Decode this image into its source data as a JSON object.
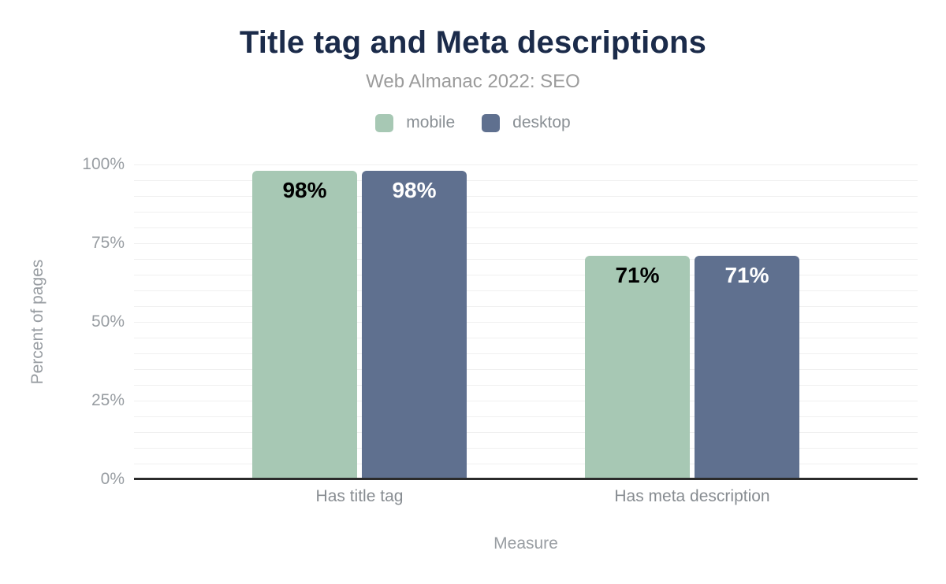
{
  "title": "Title tag and Meta descriptions",
  "subtitle": "Web Almanac 2022: SEO",
  "chart_data": {
    "type": "bar",
    "categories": [
      "Has title tag",
      "Has meta description"
    ],
    "series": [
      {
        "name": "mobile",
        "color": "#a7c8b4",
        "label_color": "#000000",
        "values": [
          98,
          71
        ]
      },
      {
        "name": "desktop",
        "color": "#5f708f",
        "label_color": "#ffffff",
        "values": [
          98,
          71
        ]
      }
    ],
    "value_labels": [
      [
        "98%",
        "71%"
      ],
      [
        "98%",
        "71%"
      ]
    ],
    "title": "Title tag and Meta descriptions",
    "subtitle": "Web Almanac 2022: SEO",
    "xlabel": "Measure",
    "ylabel": "Percent of pages",
    "ylim": [
      0,
      100
    ],
    "y_ticks": [
      {
        "label": "0%",
        "value": 0
      },
      {
        "label": "25%",
        "value": 25
      },
      {
        "label": "50%",
        "value": 50
      },
      {
        "label": "75%",
        "value": 75
      },
      {
        "label": "100%",
        "value": 100
      }
    ],
    "grid": "horizontal, minor lines every 5%",
    "legend_position": "top"
  },
  "palette": {
    "title_color": "#1b2b4a",
    "subtitle_color": "#9b9b9b",
    "axis_text_color": "#989da2",
    "grid_color": "#f0f0f0",
    "axis_line_color": "#2b2b2b"
  }
}
